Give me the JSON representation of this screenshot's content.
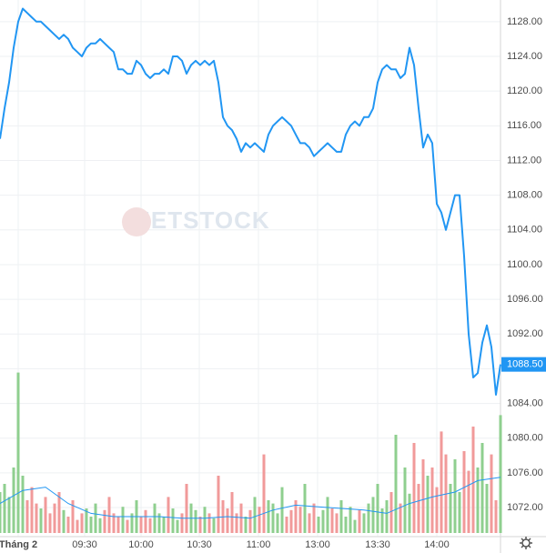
{
  "chart_data": {
    "type": "line",
    "watermark": "VIETSTOCK",
    "xlim": [
      0,
      110
    ],
    "xticks": [
      {
        "value": 4,
        "label": "Tháng 2"
      },
      {
        "value": 18.6,
        "label": "09:30"
      },
      {
        "value": 31,
        "label": "10:00"
      },
      {
        "value": 43.8,
        "label": "10:30"
      },
      {
        "value": 56.8,
        "label": "11:00"
      },
      {
        "value": 69.8,
        "label": "13:00"
      },
      {
        "value": 83,
        "label": "13:30"
      },
      {
        "value": 96,
        "label": "14:00"
      }
    ],
    "ylim": [
      1068.65,
      1130.5
    ],
    "yticks": [
      {
        "value": 1072,
        "label": "1072.00"
      },
      {
        "value": 1076,
        "label": "1076.00"
      },
      {
        "value": 1080,
        "label": "1080.00"
      },
      {
        "value": 1084,
        "label": "1084.00"
      },
      {
        "value": 1088,
        "label": "1088.00"
      },
      {
        "value": 1092,
        "label": "1092.00"
      },
      {
        "value": 1096,
        "label": "1096.00"
      },
      {
        "value": 1100,
        "label": "1100.00"
      },
      {
        "value": 1104,
        "label": "1104.00"
      },
      {
        "value": 1108,
        "label": "1108.00"
      },
      {
        "value": 1112,
        "label": "1112.00"
      },
      {
        "value": 1116,
        "label": "1116.00"
      },
      {
        "value": 1120,
        "label": "1120.00"
      },
      {
        "value": 1124,
        "label": "1124.00"
      },
      {
        "value": 1128,
        "label": "1128.00"
      }
    ],
    "grid": true,
    "last_price": {
      "value": 1088.5,
      "label": "1088.50"
    },
    "series": [
      {
        "color": "#2196f3",
        "values": [
          1114.5,
          1118,
          1121,
          1125,
          1128,
          1129.5,
          1129,
          1128.5,
          1128,
          1128,
          1127.5,
          1127,
          1126.5,
          1126,
          1126.5,
          1126,
          1125,
          1124.5,
          1124,
          1125,
          1125.5,
          1125.5,
          1126,
          1125.5,
          1125,
          1124.5,
          1122.5,
          1122.5,
          1122,
          1122,
          1123.5,
          1123,
          1122,
          1121.5,
          1122,
          1122,
          1122.5,
          1122,
          1124,
          1124,
          1123.5,
          1122,
          1123,
          1123.5,
          1123,
          1123.5,
          1123,
          1123.5,
          1121,
          1117,
          1116,
          1115.5,
          1114.5,
          1113,
          1114,
          1113.5,
          1114,
          1113.5,
          1113,
          1115,
          1116,
          1116.5,
          1117,
          1116.5,
          1116,
          1115,
          1114,
          1114,
          1113.5,
          1112.5,
          1113,
          1113.5,
          1114,
          1113.5,
          1113,
          1113,
          1115,
          1116,
          1116.5,
          1116,
          1117,
          1117,
          1118,
          1121,
          1122.5,
          1123,
          1122.5,
          1122.5,
          1121.5,
          1122,
          1125,
          1123,
          1118,
          1113.5,
          1115,
          1114,
          1107,
          1106,
          1104,
          1106,
          1108,
          1108,
          1101,
          1092,
          1087,
          1087.5,
          1091,
          1093,
          1090.5,
          1085,
          1088.5
        ]
      }
    ],
    "volume": {
      "vlim": [
        0,
        100
      ],
      "up_color": "#8fcf8f",
      "down_color": "#f19a9a",
      "values": [
        25,
        30,
        22,
        40,
        98,
        35,
        20,
        28,
        18,
        15,
        22,
        12,
        18,
        25,
        14,
        10,
        20,
        8,
        12,
        15,
        10,
        18,
        9,
        14,
        22,
        12,
        10,
        16,
        8,
        12,
        20,
        10,
        14,
        9,
        18,
        12,
        10,
        22,
        15,
        8,
        12,
        30,
        18,
        14,
        10,
        16,
        12,
        9,
        35,
        20,
        15,
        25,
        12,
        18,
        10,
        14,
        22,
        16,
        48,
        20,
        18,
        12,
        28,
        10,
        14,
        20,
        16,
        30,
        12,
        18,
        10,
        14,
        22,
        15,
        12,
        20,
        10,
        16,
        8,
        14,
        12,
        18,
        22,
        30,
        15,
        20,
        25,
        60,
        18,
        40,
        24,
        55,
        30,
        45,
        35,
        40,
        28,
        62,
        48,
        30,
        45,
        25,
        50,
        38,
        65,
        40,
        55,
        30,
        48,
        20,
        72
      ],
      "ma": {
        "color": "#2196f3",
        "x": [
          0,
          5,
          10,
          15,
          20,
          25,
          30,
          35,
          40,
          45,
          50,
          55,
          60,
          65,
          70,
          75,
          80,
          85,
          90,
          95,
          100,
          105,
          110
        ],
        "values": [
          18,
          26,
          28,
          18,
          12,
          10,
          10,
          10,
          9,
          9,
          10,
          9,
          14,
          17,
          16,
          15,
          14,
          12,
          18,
          22,
          25,
          32,
          34
        ]
      }
    }
  }
}
